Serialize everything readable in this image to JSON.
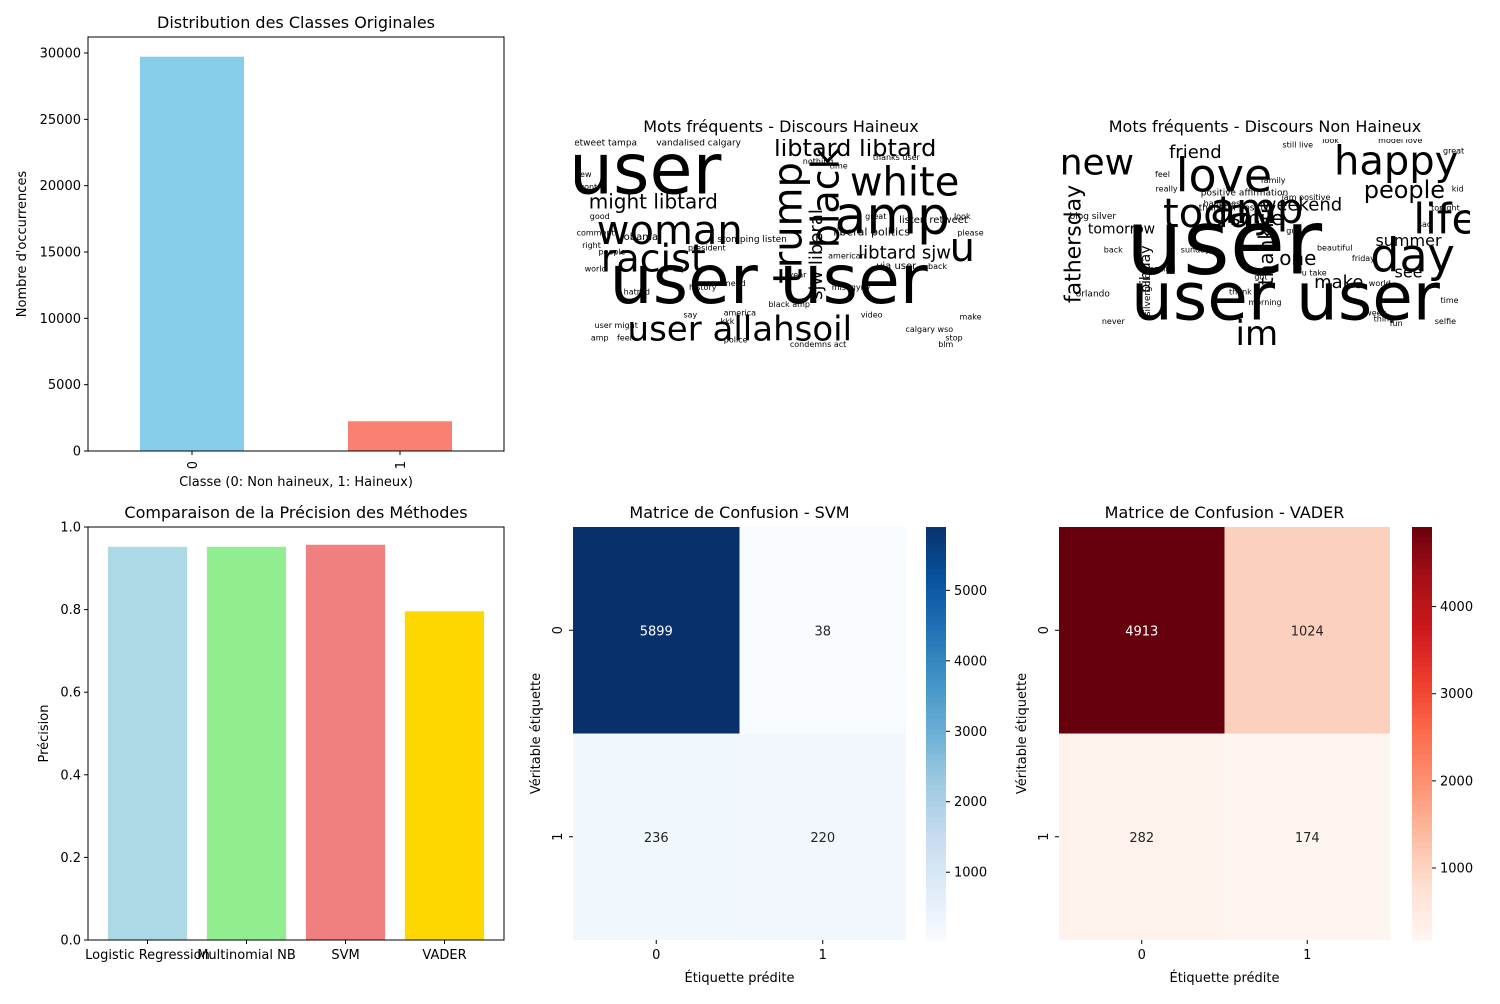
{
  "chart_data": [
    {
      "type": "bar",
      "title": "Distribution des Classes Originales",
      "xlabel": "Classe (0: Non haineux, 1: Haineux)",
      "ylabel": "Nombre d'occurrences",
      "categories": [
        "0",
        "1"
      ],
      "values": [
        29720,
        2242
      ],
      "colors": [
        "#87ceeb",
        "#fa8072"
      ],
      "ylim": [
        0,
        31206
      ],
      "yticks": [
        0,
        5000,
        10000,
        15000,
        20000,
        25000,
        30000
      ],
      "ytick_labels": [
        "0",
        "5000",
        "10000",
        "15000",
        "20000",
        "25000",
        "30000"
      ],
      "xtick_rotation": 90
    },
    {
      "type": "wordcloud",
      "title": "Mots fréquents - Discours Haineux",
      "words": [
        {
          "text": "user",
          "size": 70,
          "color": "#44337a",
          "weight": 5
        },
        {
          "text": "user user",
          "size": 68,
          "color": "#3b528b",
          "weight": 5
        },
        {
          "text": "woman",
          "size": 40,
          "color": "#482878",
          "weight": 4
        },
        {
          "text": "amp",
          "size": 52,
          "color": "#2a788e",
          "weight": 4
        },
        {
          "text": "white",
          "size": 40,
          "color": "#21918c",
          "weight": 4
        },
        {
          "text": "trump",
          "size": 40,
          "color": "#31688e",
          "weight": 4
        },
        {
          "text": "black",
          "size": 38,
          "color": "#440154",
          "weight": 4
        },
        {
          "text": "racist",
          "size": 38,
          "color": "#472d7b",
          "weight": 4
        },
        {
          "text": "user allahsoil",
          "size": 34,
          "color": "#3e4989",
          "weight": 3
        },
        {
          "text": "libtard libtard",
          "size": 24,
          "color": "#26828e",
          "weight": 3
        },
        {
          "text": "might libtard",
          "size": 20,
          "color": "#46327e",
          "weight": 3
        },
        {
          "text": "libtard sjw",
          "size": 18,
          "color": "#355f8d",
          "weight": 3
        },
        {
          "text": "sjw liberal",
          "size": 18,
          "color": "#5ec962",
          "weight": 3
        },
        {
          "text": "u",
          "size": 40,
          "color": "#b5de2b",
          "weight": 3
        },
        {
          "text": "liberal politics",
          "size": 11,
          "color": "#fde725",
          "weight": 2
        },
        {
          "text": "listen retweet",
          "size": 10,
          "color": "#21918c",
          "weight": 2
        },
        {
          "text": "via user",
          "size": 10,
          "color": "#2c728e",
          "weight": 2
        },
        {
          "text": "obama",
          "size": 10,
          "color": "#3b528b",
          "weight": 2
        },
        {
          "text": "stomping listen",
          "size": 9,
          "color": "#31688e",
          "weight": 2
        },
        {
          "text": "retweet tampa",
          "size": 9,
          "color": "#1f9e89",
          "weight": 1
        },
        {
          "text": "vandalised calgary",
          "size": 9,
          "color": "#355f8d",
          "weight": 1
        },
        {
          "text": "hatred",
          "size": 8,
          "color": "#44337a",
          "weight": 1
        },
        {
          "text": "misogyny",
          "size": 8,
          "color": "#472d7b",
          "weight": 1
        },
        {
          "text": "calgary wso",
          "size": 8,
          "color": "#3e4989",
          "weight": 1
        },
        {
          "text": "condemns act",
          "size": 8,
          "color": "#440154",
          "weight": 1
        },
        {
          "text": "blm",
          "size": 8,
          "color": "#46327e",
          "weight": 1
        },
        {
          "text": "stop",
          "size": 8,
          "color": "#414487",
          "weight": 1
        },
        {
          "text": "amp",
          "size": 8,
          "color": "#482878",
          "weight": 1
        },
        {
          "text": "feel",
          "size": 8,
          "color": "#33638d",
          "weight": 1
        },
        {
          "text": "user might",
          "size": 8,
          "color": "#2a788e",
          "weight": 1
        },
        {
          "text": "police",
          "size": 8,
          "color": "#482878",
          "weight": 1
        },
        {
          "text": "kkk",
          "size": 8,
          "color": "#31688e",
          "weight": 1
        },
        {
          "text": "america",
          "size": 8,
          "color": "#3b528b",
          "weight": 1
        },
        {
          "text": "black amp",
          "size": 8,
          "color": "#472d7b",
          "weight": 1
        },
        {
          "text": "video",
          "size": 8,
          "color": "#46327e",
          "weight": 1
        },
        {
          "text": "people",
          "size": 8,
          "color": "#26828e",
          "weight": 1
        },
        {
          "text": "say",
          "size": 8,
          "color": "#44337a",
          "weight": 1
        },
        {
          "text": "history",
          "size": 8,
          "color": "#355f8d",
          "weight": 1
        },
        {
          "text": "president",
          "size": 8,
          "color": "#2c728e",
          "weight": 1
        },
        {
          "text": "need",
          "size": 8,
          "color": "#3e4989",
          "weight": 1
        },
        {
          "text": "great",
          "size": 8,
          "color": "#472d7b",
          "weight": 1
        },
        {
          "text": "thanks user",
          "size": 8,
          "color": "#33638d",
          "weight": 1
        },
        {
          "text": "nothing",
          "size": 8,
          "color": "#3b528b",
          "weight": 1
        },
        {
          "text": "time",
          "size": 8,
          "color": "#b5de2b",
          "weight": 1
        },
        {
          "text": "make",
          "size": 8,
          "color": "#26828e",
          "weight": 1
        },
        {
          "text": "back",
          "size": 8,
          "color": "#414487",
          "weight": 1
        },
        {
          "text": "comment",
          "size": 8,
          "color": "#2a788e",
          "weight": 1
        },
        {
          "text": "good",
          "size": 8,
          "color": "#440154",
          "weight": 1
        },
        {
          "text": "world",
          "size": 8,
          "color": "#482878",
          "weight": 1
        },
        {
          "text": "right",
          "size": 8,
          "color": "#31688e",
          "weight": 1
        },
        {
          "text": "new",
          "size": 8,
          "color": "#46327e",
          "weight": 1
        },
        {
          "text": "wont",
          "size": 8,
          "color": "#3b528b",
          "weight": 1
        },
        {
          "text": "year",
          "size": 8,
          "color": "#5ec962",
          "weight": 1
        },
        {
          "text": "american",
          "size": 8,
          "color": "#21918c",
          "weight": 1
        },
        {
          "text": "look",
          "size": 8,
          "color": "#1f9e89",
          "weight": 1
        },
        {
          "text": "please",
          "size": 8,
          "color": "#b5de2b",
          "weight": 1
        }
      ]
    },
    {
      "type": "wordcloud",
      "title": "Mots fréquents - Discours Non Haineux",
      "words": [
        {
          "text": "user",
          "size": 90,
          "color": "#2a788e",
          "weight": 5
        },
        {
          "text": "user user",
          "size": 66,
          "color": "#3e4989",
          "weight": 5
        },
        {
          "text": "love",
          "size": 46,
          "color": "#1f9e89",
          "weight": 4
        },
        {
          "text": "amp",
          "size": 42,
          "color": "#46327e",
          "weight": 4
        },
        {
          "text": "happy",
          "size": 40,
          "color": "#3b528b",
          "weight": 4
        },
        {
          "text": "life",
          "size": 42,
          "color": "#440154",
          "weight": 4
        },
        {
          "text": "day",
          "size": 46,
          "color": "#21918c",
          "weight": 4
        },
        {
          "text": "today",
          "size": 40,
          "color": "#7ad151",
          "weight": 4
        },
        {
          "text": "new",
          "size": 36,
          "color": "#2a788e",
          "weight": 4
        },
        {
          "text": "people",
          "size": 24,
          "color": "#46327e",
          "weight": 3
        },
        {
          "text": "im",
          "size": 34,
          "color": "#5ec962",
          "weight": 3
        },
        {
          "text": "fathersday",
          "size": 22,
          "color": "#7ad151",
          "weight": 3
        },
        {
          "text": "thankful",
          "size": 20,
          "color": "#31688e",
          "weight": 3
        },
        {
          "text": "weekend",
          "size": 18,
          "color": "#2c728e",
          "weight": 3
        },
        {
          "text": "friend",
          "size": 18,
          "color": "#482878",
          "weight": 3
        },
        {
          "text": "smile",
          "size": 20,
          "color": "#3e4989",
          "weight": 3
        },
        {
          "text": "summer",
          "size": 16,
          "color": "#26828e",
          "weight": 3
        },
        {
          "text": "one",
          "size": 20,
          "color": "#414487",
          "weight": 3
        },
        {
          "text": "make",
          "size": 18,
          "color": "#5ec962",
          "weight": 3
        },
        {
          "text": "see",
          "size": 16,
          "color": "#355f8d",
          "weight": 2
        },
        {
          "text": "bihday",
          "size": 14,
          "color": "#5ec962",
          "weight": 2
        },
        {
          "text": "tomorrow",
          "size": 14,
          "color": "#33638d",
          "weight": 2
        },
        {
          "text": "positive affirmation",
          "size": 9,
          "color": "#3b528b",
          "weight": 1
        },
        {
          "text": "thankful positive",
          "size": 9,
          "color": "#33638d",
          "weight": 1
        },
        {
          "text": "blog silver",
          "size": 9,
          "color": "#44337a",
          "weight": 1
        },
        {
          "text": "silvergold",
          "size": 9,
          "color": "#482878",
          "weight": 1
        },
        {
          "text": "orlando",
          "size": 9,
          "color": "#3b528b",
          "weight": 1
        },
        {
          "text": "sunday",
          "size": 8,
          "color": "#31688e",
          "weight": 1
        },
        {
          "text": "amazing",
          "size": 8,
          "color": "#46327e",
          "weight": 1
        },
        {
          "text": "beautiful",
          "size": 8,
          "color": "#3e4989",
          "weight": 1
        },
        {
          "text": "happiness",
          "size": 8,
          "color": "#482878",
          "weight": 1
        },
        {
          "text": "family",
          "size": 8,
          "color": "#3b528b",
          "weight": 1
        },
        {
          "text": "world",
          "size": 8,
          "color": "#44337a",
          "weight": 1
        },
        {
          "text": "week",
          "size": 8,
          "color": "#2c728e",
          "weight": 1
        },
        {
          "text": "time",
          "size": 8,
          "color": "#414487",
          "weight": 1
        },
        {
          "text": "thing",
          "size": 8,
          "color": "#26828e",
          "weight": 1
        },
        {
          "text": "fun",
          "size": 8,
          "color": "#5ec962",
          "weight": 1
        },
        {
          "text": "never",
          "size": 8,
          "color": "#21918c",
          "weight": 1
        },
        {
          "text": "back",
          "size": 8,
          "color": "#355f8d",
          "weight": 1
        },
        {
          "text": "friday",
          "size": 8,
          "color": "#46327e",
          "weight": 1
        },
        {
          "text": "morning",
          "size": 8,
          "color": "#440154",
          "weight": 1
        },
        {
          "text": "thank",
          "size": 8,
          "color": "#3e4989",
          "weight": 1
        },
        {
          "text": "got",
          "size": 8,
          "color": "#2a788e",
          "weight": 1
        },
        {
          "text": "guy",
          "size": 8,
          "color": "#482878",
          "weight": 1
        },
        {
          "text": "feel",
          "size": 8,
          "color": "#3b528b",
          "weight": 1
        },
        {
          "text": "still live",
          "size": 8,
          "color": "#31688e",
          "weight": 1
        },
        {
          "text": "look",
          "size": 8,
          "color": "#440154",
          "weight": 1
        },
        {
          "text": "great",
          "size": 8,
          "color": "#26828e",
          "weight": 1
        },
        {
          "text": "model love",
          "size": 8,
          "color": "#46327e",
          "weight": 1
        },
        {
          "text": "sad",
          "size": 8,
          "color": "#414487",
          "weight": 1
        },
        {
          "text": "selfie",
          "size": 8,
          "color": "#1f9e89",
          "weight": 1
        },
        {
          "text": "kid",
          "size": 8,
          "color": "#3b528b",
          "weight": 1
        },
        {
          "text": "tonight",
          "size": 8,
          "color": "#355f8d",
          "weight": 1
        },
        {
          "text": "iam positive",
          "size": 8,
          "color": "#440154",
          "weight": 1
        },
        {
          "text": "u take",
          "size": 8,
          "color": "#2a788e",
          "weight": 1
        },
        {
          "text": "really",
          "size": 8,
          "color": "#482878",
          "weight": 1
        }
      ]
    },
    {
      "type": "bar",
      "title": "Comparaison de la Précision des Méthodes",
      "xlabel": "",
      "ylabel": "Précision",
      "categories": [
        "Logistic Regression",
        "Multinomial NB",
        "SVM",
        "VADER"
      ],
      "values": [
        0.952,
        0.952,
        0.957,
        0.796
      ],
      "colors": [
        "#add8e6",
        "#90ee90",
        "#f08080",
        "#ffd700"
      ],
      "ylim": [
        0,
        1.0
      ],
      "yticks": [
        0,
        0.2,
        0.4,
        0.6,
        0.8,
        1.0
      ],
      "ytick_labels": [
        "0.0",
        "0.2",
        "0.4",
        "0.6",
        "0.8",
        "1.0"
      ]
    },
    {
      "type": "heatmap",
      "title": "Matrice de Confusion - SVM",
      "xlabel": "Étiquette prédite",
      "ylabel": "Véritable étiquette",
      "x_categories": [
        "0",
        "1"
      ],
      "y_categories": [
        "0",
        "1"
      ],
      "values": [
        [
          5899,
          38
        ],
        [
          236,
          220
        ]
      ],
      "cmap": "Blues",
      "colorbar_ticks": [
        1000,
        2000,
        3000,
        4000,
        5000
      ],
      "colorbar_range": [
        38,
        5899
      ]
    },
    {
      "type": "heatmap",
      "title": "Matrice de Confusion - VADER",
      "xlabel": "Étiquette prédite",
      "ylabel": "Véritable étiquette",
      "x_categories": [
        "0",
        "1"
      ],
      "y_categories": [
        "0",
        "1"
      ],
      "values": [
        [
          4913,
          1024
        ],
        [
          282,
          174
        ]
      ],
      "cmap": "Reds",
      "colorbar_ticks": [
        1000,
        2000,
        3000,
        4000
      ],
      "colorbar_range": [
        174,
        4913
      ]
    }
  ]
}
